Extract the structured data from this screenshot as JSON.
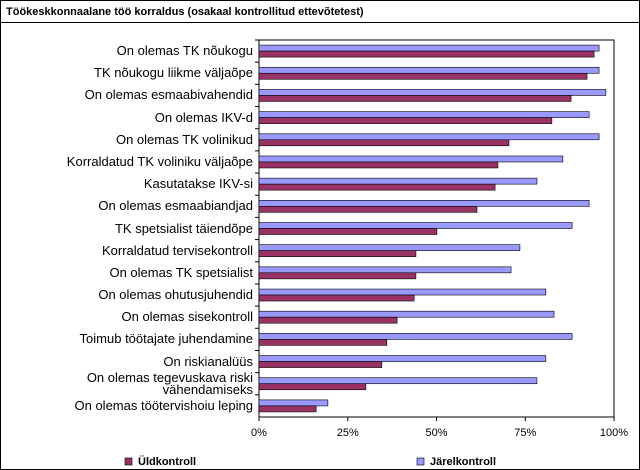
{
  "chart_data": {
    "type": "hbar",
    "title": "Töökeskkonnaalane töö korraldus (osakaal kontrollitud ettevõtetest)",
    "categories": [
      "On olemas TK nõukogu",
      "TK nõukogu liikme väljaõpe",
      "On olemas esmaabivahendid",
      "On olemas IKV-d",
      "On olemas TK volinikud",
      "Korraldatud TK voliniku väljaõpe",
      "Kasutatakse IKV-si",
      "On olemas esmaabiandjad",
      "TK spetsialist täiendõpe",
      "Korraldatud tervisekontroll",
      "On olemas TK spetsialist",
      "On olemas ohutusjuhendid",
      "On olemas sisekontroll",
      "Toimub töötajate juhendamine",
      "On riskianalüüs",
      "On olemas tegevuskava riski vähendamiseks",
      "On olemas töötervishoiu leping"
    ],
    "series": [
      {
        "name": "Üldkontroll",
        "color": "#993366",
        "values": [
          94.4,
          92.4,
          87.9,
          82.5,
          70.4,
          67.3,
          66.5,
          61.4,
          50.1,
          44.2,
          44.2,
          43.7,
          38.9,
          36.0,
          34.6,
          30.1,
          16.1
        ]
      },
      {
        "name": "Järelkontroll",
        "color": "#9999ff",
        "values": [
          95.8,
          95.8,
          97.7,
          93.0,
          95.8,
          85.6,
          78.3,
          93.0,
          88.2,
          73.5,
          71.0,
          80.8,
          83.1,
          88.2,
          80.8,
          78.3,
          19.4
        ]
      }
    ],
    "xlim": [
      0,
      100
    ],
    "xticks": [
      {
        "value": 0,
        "label": "0%"
      },
      {
        "value": 25,
        "label": "25%"
      },
      {
        "value": 50,
        "label": "50%"
      },
      {
        "value": 75,
        "label": "75%"
      },
      {
        "value": 100,
        "label": "100%"
      }
    ]
  }
}
